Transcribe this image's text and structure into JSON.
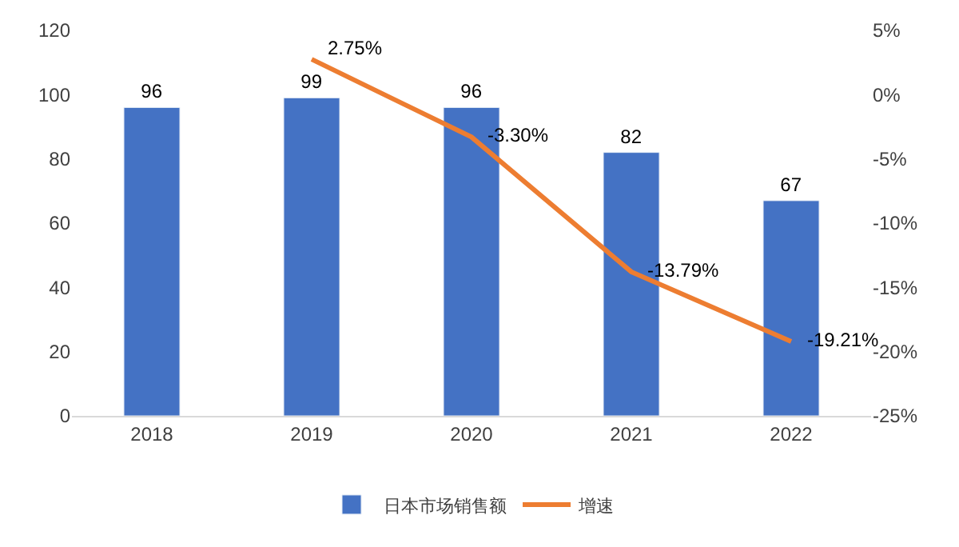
{
  "chart_data": {
    "type": "bar",
    "categories": [
      "2018",
      "2019",
      "2020",
      "2021",
      "2022"
    ],
    "series": [
      {
        "name": "日本市场销售额",
        "color": "#4472c4",
        "values": [
          96,
          99,
          96,
          82,
          67
        ]
      },
      {
        "name": "增速",
        "type": "line",
        "axis": "y2",
        "color": "#ed7d31",
        "marker": "none",
        "values": [
          null,
          2.75,
          -3.3,
          -13.79,
          -19.21
        ],
        "value_labels": [
          null,
          "2.75%",
          "-3.30%",
          "-13.79%",
          "-19.21%"
        ]
      }
    ],
    "data_labels": true,
    "ylim": [
      0,
      120
    ],
    "yticks": [
      0,
      20,
      40,
      60,
      80,
      100,
      120
    ],
    "y2lim": [
      -25,
      5
    ],
    "y2ticks": [
      {
        "value": -25,
        "label": "-25%"
      },
      {
        "value": -20,
        "label": "-20%"
      },
      {
        "value": -15,
        "label": "-15%"
      },
      {
        "value": -10,
        "label": "-10%"
      },
      {
        "value": -5,
        "label": "-5%"
      },
      {
        "value": 0,
        "label": "0%"
      },
      {
        "value": 5,
        "label": "5%"
      }
    ],
    "legend": "bottom"
  }
}
